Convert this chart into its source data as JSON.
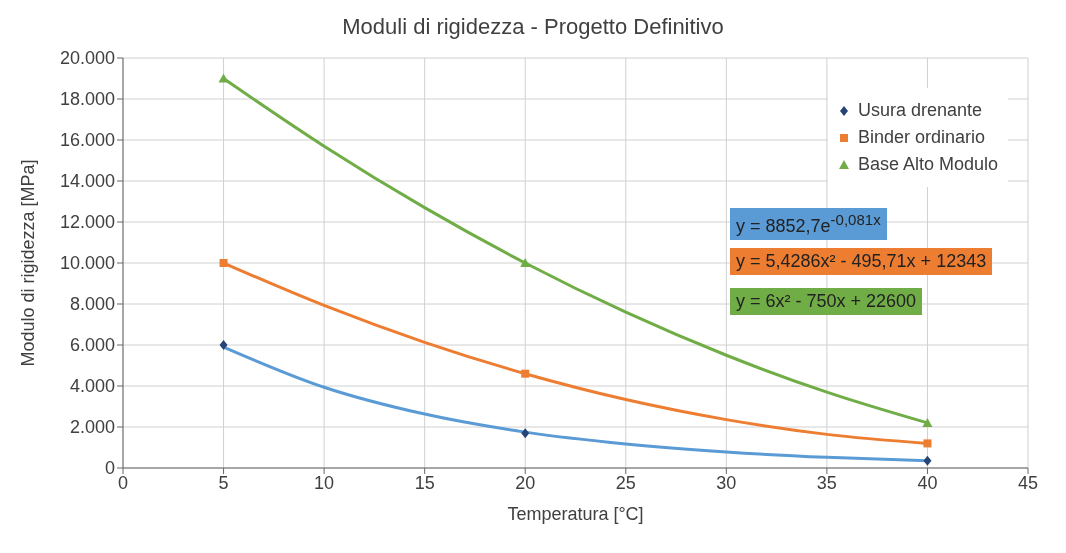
{
  "chart_data": {
    "type": "scatter",
    "title": "Moduli di rigidezza - Progetto Definitivo",
    "xlabel": "Temperatura [°C]",
    "ylabel": "Modulo di rigidezza [MPa]",
    "xlim": [
      0,
      45
    ],
    "xticks": [
      0,
      5,
      10,
      15,
      20,
      25,
      30,
      35,
      40,
      45
    ],
    "ylim": [
      0,
      20000
    ],
    "yticks": [
      {
        "value": 0,
        "label": "0"
      },
      {
        "value": 2000,
        "label": "2.000"
      },
      {
        "value": 4000,
        "label": "4.000"
      },
      {
        "value": 6000,
        "label": "6.000"
      },
      {
        "value": 8000,
        "label": "8.000"
      },
      {
        "value": 10000,
        "label": "10.000"
      },
      {
        "value": 12000,
        "label": "12.000"
      },
      {
        "value": 14000,
        "label": "14.000"
      },
      {
        "value": 16000,
        "label": "16.000"
      },
      {
        "value": 18000,
        "label": "18.000"
      },
      {
        "value": 20000,
        "label": "20.000"
      }
    ],
    "grid": true,
    "legend": "top right",
    "series": [
      {
        "name": "Usura drenante",
        "color": "#264478",
        "marker": "diamond",
        "x": [
          5,
          20,
          40
        ],
        "values": [
          6000,
          1700,
          350
        ]
      },
      {
        "name": "Binder ordinario",
        "color": "#ed7d31",
        "marker": "square",
        "x": [
          5,
          20,
          40
        ],
        "values": [
          10000,
          4600,
          1200
        ]
      },
      {
        "name": "Base Alto Modulo",
        "color": "#70ad47",
        "marker": "triangle",
        "x": [
          5,
          20,
          40
        ],
        "values": [
          19000,
          10000,
          2200
        ]
      },
      {
        "type": "line",
        "color": "#5b9bd5",
        "marker": "none",
        "x": [
          5,
          10,
          15,
          20,
          25,
          30,
          35,
          40
        ],
        "values": [
          5900,
          3940,
          2630,
          1750,
          1170,
          780,
          520,
          350
        ]
      },
      {
        "type": "line",
        "color": "#ed7d31",
        "marker": "none",
        "x": [
          5,
          10,
          15,
          20,
          25,
          30,
          35,
          40
        ],
        "values": [
          10000,
          7930,
          6130,
          4600,
          3340,
          2360,
          1640,
          1200
        ]
      },
      {
        "type": "line",
        "color": "#70ad47",
        "marker": "none",
        "x": [
          5,
          10,
          15,
          20,
          25,
          30,
          35,
          40
        ],
        "values": [
          19000,
          15700,
          12700,
          10000,
          7600,
          5500,
          3700,
          2200
        ]
      }
    ],
    "annotations": [
      "y = 8852,7e$^{-0,081x}$",
      "y = 5,4286x² - 495,71x + 12343",
      "y = 6x² - 750x + 22600"
    ]
  }
}
